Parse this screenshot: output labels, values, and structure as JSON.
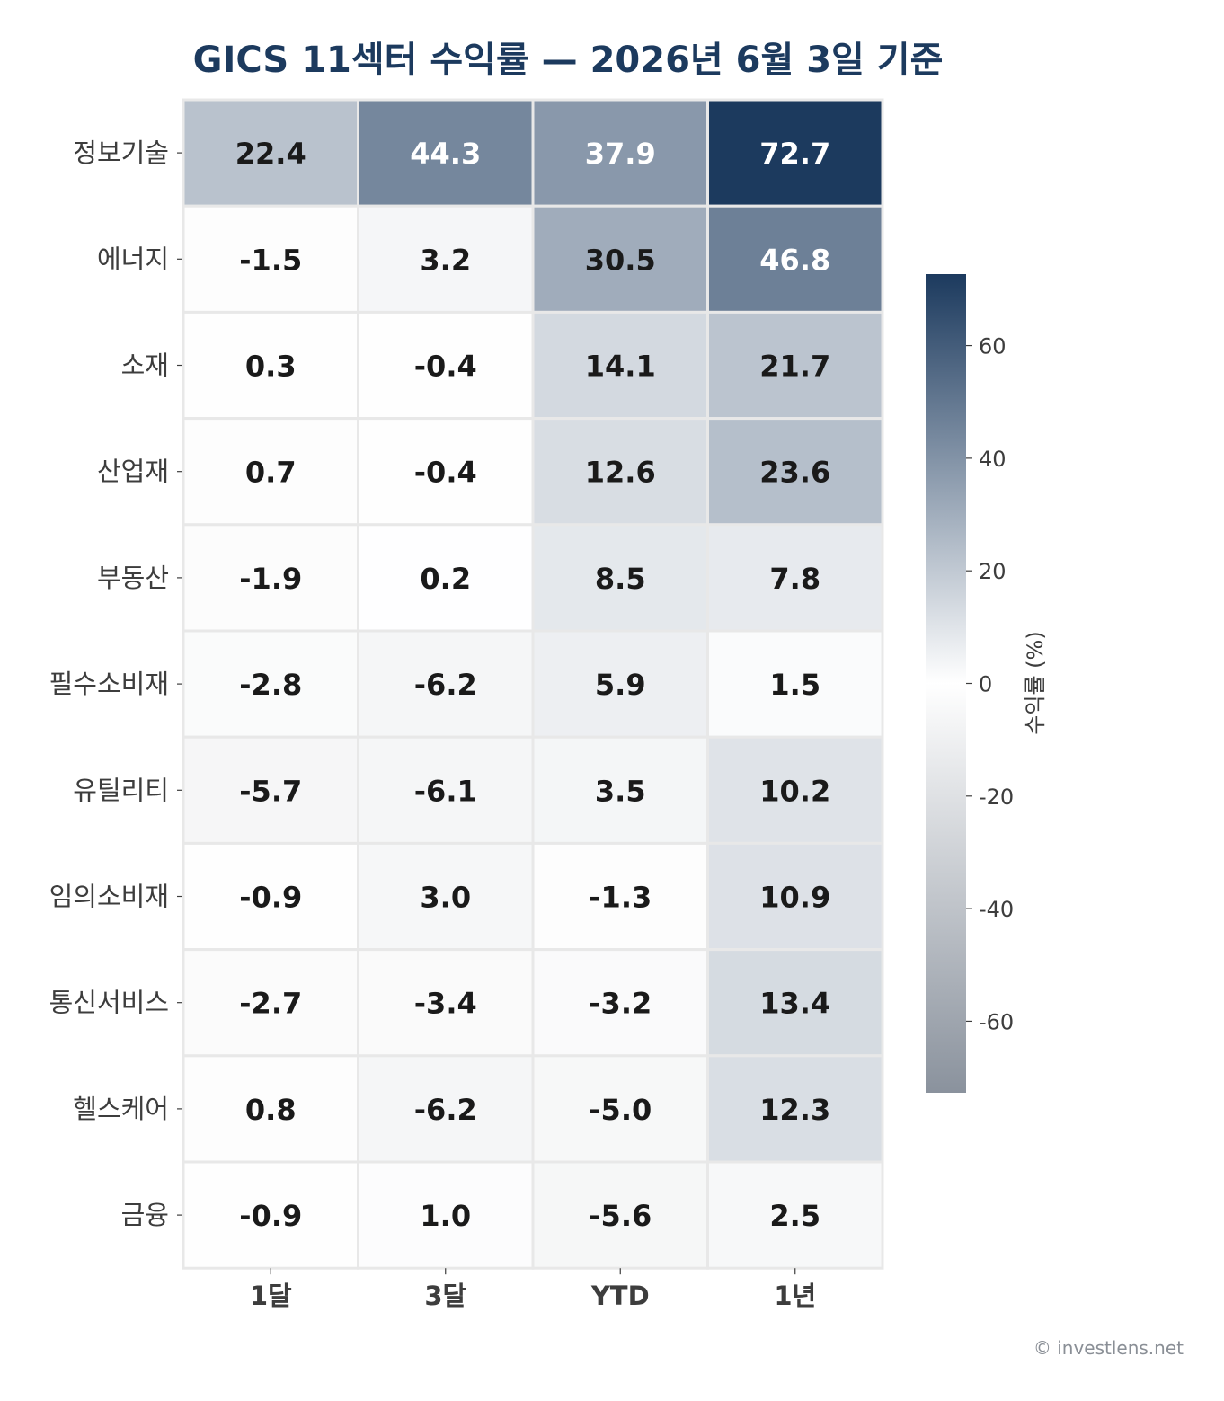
{
  "chart_data": {
    "type": "heatmap",
    "title": "GICS 11섹터 수익률 — 2026년 6월 3일 기준",
    "columns": [
      "1달",
      "3달",
      "YTD",
      "1년"
    ],
    "rows": [
      "정보기술",
      "에너지",
      "소재",
      "산업재",
      "부동산",
      "필수소비재",
      "유틸리티",
      "임의소비재",
      "통신서비스",
      "헬스케어",
      "금융"
    ],
    "values": [
      [
        22.4,
        44.3,
        37.9,
        72.7
      ],
      [
        -1.5,
        3.2,
        30.5,
        46.8
      ],
      [
        0.3,
        -0.4,
        14.1,
        21.7
      ],
      [
        0.7,
        -0.4,
        12.6,
        23.6
      ],
      [
        -1.9,
        0.2,
        8.5,
        7.8
      ],
      [
        -2.8,
        -6.2,
        5.9,
        1.5
      ],
      [
        -5.7,
        -6.1,
        3.5,
        10.2
      ],
      [
        -0.9,
        3.0,
        -1.3,
        10.9
      ],
      [
        -2.7,
        -3.4,
        -3.2,
        13.4
      ],
      [
        0.8,
        -6.2,
        -5.0,
        12.3
      ],
      [
        -0.9,
        1.0,
        -5.6,
        2.5
      ]
    ],
    "value_labels": [
      [
        "22.4",
        "44.3",
        "37.9",
        "72.7"
      ],
      [
        "-1.5",
        "3.2",
        "30.5",
        "46.8"
      ],
      [
        "0.3",
        "-0.4",
        "14.1",
        "21.7"
      ],
      [
        "0.7",
        "-0.4",
        "12.6",
        "23.6"
      ],
      [
        "-1.9",
        "0.2",
        "8.5",
        "7.8"
      ],
      [
        "-2.8",
        "-6.2",
        "5.9",
        "1.5"
      ],
      [
        "-5.7",
        "-6.1",
        "3.5",
        "10.2"
      ],
      [
        "-0.9",
        "3.0",
        "-1.3",
        "10.9"
      ],
      [
        "-2.7",
        "-3.4",
        "-3.2",
        "13.4"
      ],
      [
        "0.8",
        "-6.2",
        "-5.0",
        "12.3"
      ],
      [
        "-0.9",
        "1.0",
        "-5.6",
        "2.5"
      ]
    ],
    "colorbar": {
      "label": "수익률 (%)",
      "range": [
        -72.7,
        72.7
      ],
      "ticks": [
        60,
        40,
        20,
        0,
        -20,
        -40,
        -60
      ],
      "tick_labels": [
        "60",
        "40",
        "20",
        "0",
        "-20",
        "-40",
        "-60"
      ],
      "color_positive": "#1c3a5e",
      "color_zero": "#ffffff",
      "color_negative": "#8a929d"
    },
    "colors": {
      "title": "#1c3a5e",
      "cell_text_dark": "#1a1a1a",
      "cell_text_light": "#ffffff",
      "axis_text": "#3d3d3d",
      "grid_line": "#e8e8e8"
    }
  },
  "footer": {
    "credit": "© investlens.net"
  }
}
